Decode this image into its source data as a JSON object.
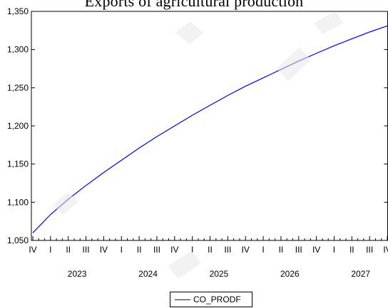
{
  "header_fragment": "Exports of agricultural production",
  "chart_data": {
    "type": "line",
    "title": "",
    "xlabel": "",
    "ylabel": "",
    "ylim": [
      1050,
      1350
    ],
    "yticks": [
      "1,050",
      "1,100",
      "1,150",
      "1,200",
      "1,250",
      "1,300",
      "1,350"
    ],
    "xlim": [
      "2022Q4",
      "2027Q4"
    ],
    "x_quarter_labels": [
      "IV",
      "I",
      "II",
      "III",
      "IV",
      "I",
      "II",
      "III",
      "IV",
      "I",
      "II",
      "III",
      "IV",
      "I",
      "II",
      "III",
      "IV",
      "I",
      "II",
      "III",
      "IV"
    ],
    "x_year_labels": [
      "2023",
      "2024",
      "2025",
      "2026",
      "2027"
    ],
    "grid": false,
    "legend_position": "bottom",
    "series": [
      {
        "name": "CO_PRODF",
        "color": "#0000ff",
        "x": [
          "2022Q4",
          "2023Q1",
          "2023Q2",
          "2023Q3",
          "2023Q4",
          "2024Q1",
          "2024Q2",
          "2024Q3",
          "2024Q4",
          "2025Q1",
          "2025Q2",
          "2025Q3",
          "2025Q4",
          "2026Q1",
          "2026Q2",
          "2026Q3",
          "2026Q4",
          "2027Q1",
          "2027Q2",
          "2027Q3",
          "2027Q4"
        ],
        "values": [
          1060,
          1084,
          1104,
          1122,
          1139,
          1155,
          1171,
          1186,
          1200,
          1214,
          1227,
          1240,
          1252,
          1263,
          1274,
          1285,
          1295,
          1305,
          1314,
          1323,
          1331
        ]
      }
    ]
  }
}
